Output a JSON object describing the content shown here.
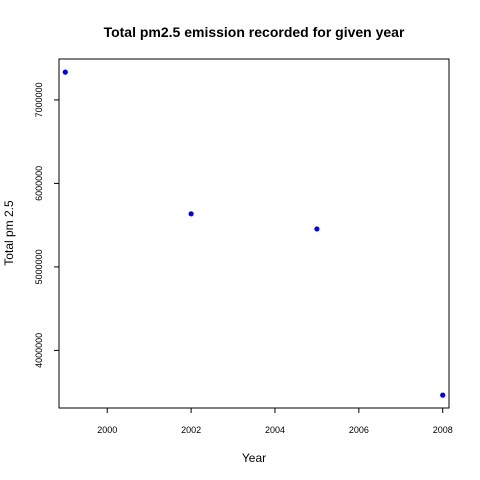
{
  "chart_data": {
    "type": "scatter",
    "title": "Total pm2.5 emission recorded for given year",
    "xlabel": "Year",
    "ylabel": "Total pm 2.5",
    "x": [
      1999,
      2002,
      2005,
      2008
    ],
    "y": [
      7332967,
      5635780,
      5454703,
      3464206
    ],
    "xlim": [
      1998.85,
      2008.15
    ],
    "ylim": [
      3310000,
      7490000
    ],
    "xticks": [
      2000,
      2002,
      2004,
      2006,
      2008
    ],
    "xtick_labels": [
      "2000",
      "2002",
      "2004",
      "2006",
      "2008"
    ],
    "yticks": [
      4000000,
      5000000,
      6000000,
      7000000
    ],
    "ytick_labels": [
      "4000000",
      "5000000",
      "6000000",
      "7000000"
    ],
    "grid": false,
    "point_color": "#0000ff"
  }
}
